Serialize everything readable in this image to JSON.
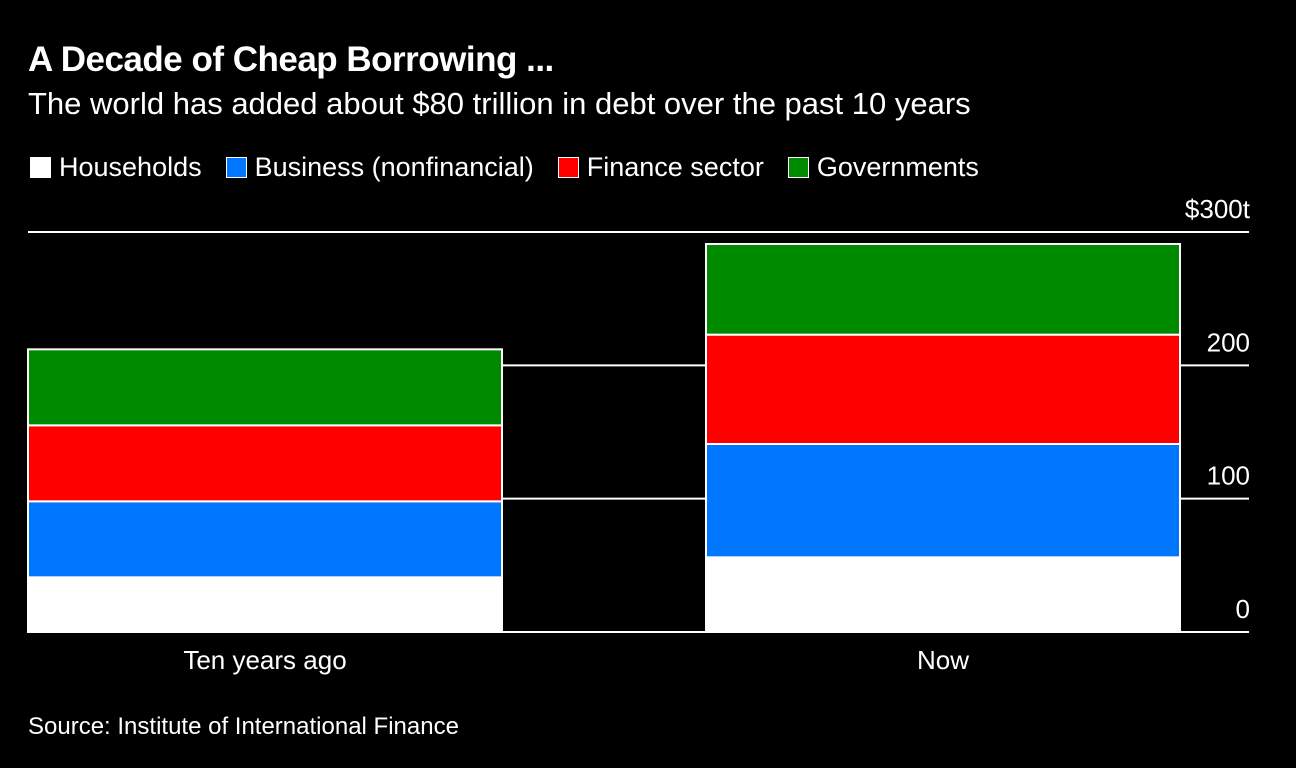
{
  "title": "A Decade of Cheap Borrowing ...",
  "subtitle": "The world has added about $80 trillion in debt over the past 10 years",
  "source": "Source: Institute of International Finance",
  "colors": {
    "background": "#000000",
    "households": "#ffffff",
    "business": "#0077ff",
    "finance": "#ff0000",
    "governments": "#008a00",
    "gridline": "#ffffff"
  },
  "legend": [
    {
      "label": "Households",
      "color": "#ffffff"
    },
    {
      "label": "Business (nonfinancial)",
      "color": "#0077ff"
    },
    {
      "label": "Finance sector",
      "color": "#ff0000"
    },
    {
      "label": "Governments",
      "color": "#008a00"
    }
  ],
  "chart_data": {
    "type": "bar",
    "stacked": true,
    "title": "A Decade of Cheap Borrowing ...",
    "subtitle": "The world has added about $80 trillion in debt over the past 10 years",
    "categories": [
      "Ten years ago",
      "Now"
    ],
    "series": [
      {
        "name": "Households",
        "color": "#ffffff",
        "values": [
          41,
          56
        ]
      },
      {
        "name": "Business (nonfinancial)",
        "color": "#0077ff",
        "values": [
          57,
          85
        ]
      },
      {
        "name": "Finance sector",
        "color": "#ff0000",
        "values": [
          57,
          82
        ]
      },
      {
        "name": "Governments",
        "color": "#008a00",
        "values": [
          57,
          68
        ]
      }
    ],
    "ylim": [
      0,
      300
    ],
    "yticks": [
      0,
      100,
      200,
      300
    ],
    "ytick_labels": [
      "0",
      "100",
      "200",
      "$300t"
    ],
    "xlabel": "",
    "ylabel": "",
    "grid": true,
    "legend_position": "top-left"
  }
}
